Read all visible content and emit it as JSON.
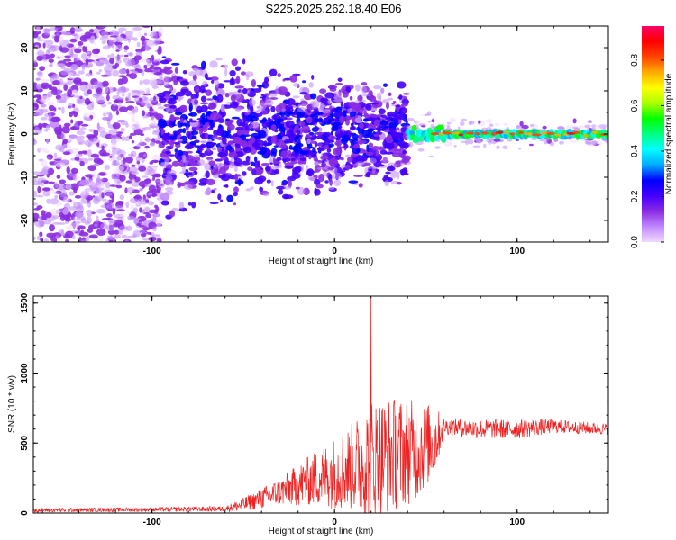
{
  "title": "S225.2025.262.18.40.E06",
  "chart_data": [
    {
      "type": "heatmap",
      "name": "spectrogram",
      "xlabel": "Height of straight line (km)",
      "ylabel": "Frequency (Hz)",
      "xlim": [
        -165,
        150
      ],
      "ylim": [
        -25,
        25
      ],
      "xticks": [
        -100,
        0,
        100
      ],
      "yticks": [
        -20,
        -10,
        0,
        10,
        20
      ],
      "grid": false,
      "colorbar": {
        "label": "Normalized spectral amplitude",
        "range": [
          0,
          0.95
        ],
        "ticks": [
          0.0,
          0.2,
          0.4,
          0.6,
          0.8
        ],
        "colormap": [
          "#f0d8ff",
          "#c089ff",
          "#8a2be2",
          "#4400ff",
          "#0000ff",
          "#00aaff",
          "#00ffff",
          "#00ff80",
          "#00ff00",
          "#aaff00",
          "#ffff00",
          "#ffaa00",
          "#ff4400",
          "#ff0000",
          "#ff0066"
        ]
      },
      "description_regions": [
        {
          "x_range": [
            -165,
            -95
          ],
          "freq_spread": [
            -25,
            25
          ],
          "amplitude": 0.05
        },
        {
          "x_range": [
            -95,
            40
          ],
          "freq_spread": [
            -20,
            20
          ],
          "amplitude": 0.15
        },
        {
          "x_range": [
            40,
            150
          ],
          "freq_center": 0,
          "freq_width": 2,
          "amplitude": 0.85
        }
      ]
    },
    {
      "type": "line",
      "name": "snr",
      "xlabel": "Height of straight line (km)",
      "ylabel": "SNR (10 * v/v)",
      "xlim": [
        -165,
        150
      ],
      "ylim": [
        0,
        1550
      ],
      "xticks": [
        -100,
        0,
        100
      ],
      "yticks": [
        0,
        500,
        1000,
        1500
      ],
      "color": "#ee2222",
      "envelope": {
        "x": [
          -165,
          -100,
          -60,
          -50,
          -30,
          -10,
          10,
          20,
          30,
          45,
          55,
          60,
          80,
          100,
          120,
          150
        ],
        "mean": [
          20,
          25,
          30,
          60,
          150,
          250,
          330,
          380,
          420,
          450,
          520,
          620,
          600,
          600,
          620,
          600
        ],
        "amplitude": [
          15,
          15,
          20,
          50,
          100,
          200,
          320,
          450,
          420,
          360,
          250,
          60,
          70,
          70,
          50,
          40
        ]
      },
      "peak": {
        "x": 20,
        "y": 1550
      }
    }
  ]
}
